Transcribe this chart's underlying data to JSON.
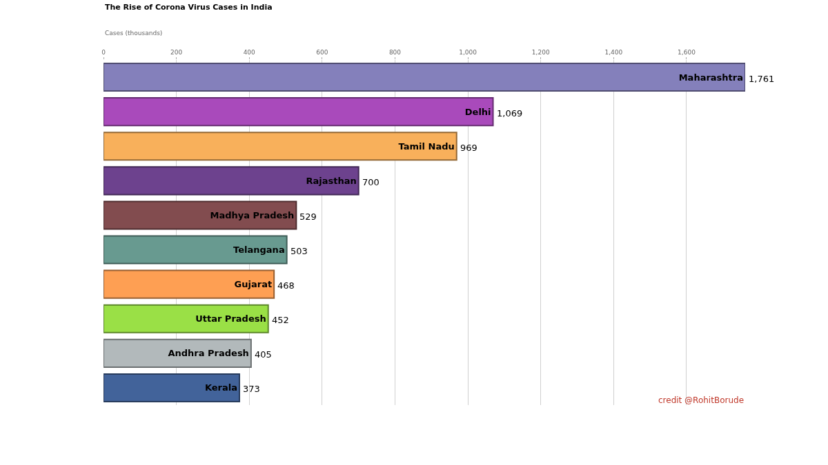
{
  "chart_data": {
    "type": "bar",
    "orientation": "horizontal",
    "title": "The Rise of Corona Virus Cases in India",
    "xlabel": "Cases (thousands)",
    "categories": [
      "Maharashtra",
      "Delhi",
      "Tamil Nadu",
      "Rajasthan",
      "Madhya Pradesh",
      "Telangana",
      "Gujarat",
      "Uttar Pradesh",
      "Andhra Pradesh",
      "Kerala"
    ],
    "values": [
      1761,
      1069,
      969,
      700,
      529,
      503,
      468,
      452,
      405,
      373
    ],
    "value_labels": [
      "1,761",
      "1,069",
      "969",
      "700",
      "529",
      "503",
      "468",
      "452",
      "405",
      "373"
    ],
    "colors": [
      "#8480bb",
      "#a94abb",
      "#f8b05b",
      "#6d428e",
      "#824c4f",
      "#689a90",
      "#fe9f53",
      "#9ae046",
      "#b2b9bb",
      "#42639a"
    ],
    "xlim": [
      0,
      1761
    ],
    "xticks": [
      0,
      200,
      400,
      600,
      800,
      {
        "value": 1000,
        "label": "1,000"
      },
      {
        "value": 1200,
        "label": "1,200"
      },
      {
        "value": 1400,
        "label": "1,400"
      },
      {
        "value": 1600,
        "label": "1,600"
      }
    ],
    "grid": "x",
    "legend": false,
    "annotations": [
      "credit @RohitBorude"
    ]
  }
}
